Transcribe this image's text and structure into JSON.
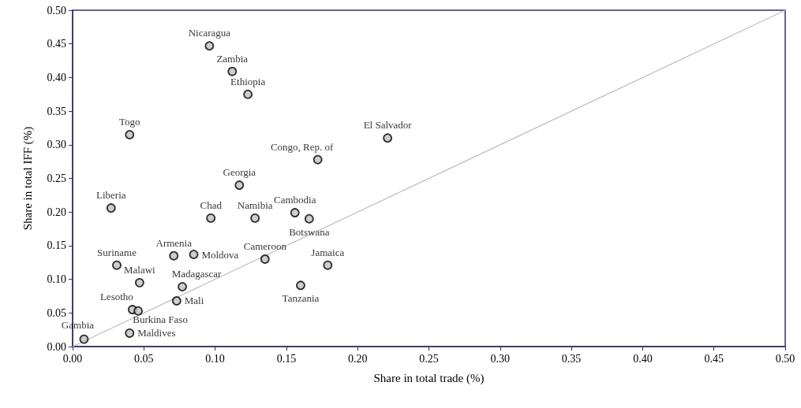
{
  "chart_data": {
    "type": "scatter",
    "xlabel": "Share in total trade (%)",
    "ylabel": "Share in total IFF (%)",
    "series": [
      {
        "color": "#c0c0c0",
        "x": [
          0.096,
          0.112,
          0.123,
          0.04,
          0.221,
          0.172,
          0.117,
          0.027,
          0.097,
          0.128,
          0.156,
          0.166,
          0.071,
          0.085,
          0.135,
          0.179,
          0.031,
          0.047,
          0.077,
          0.16,
          0.073,
          0.042,
          0.046,
          0.008,
          0.04
        ],
        "values": [
          0.447,
          0.409,
          0.375,
          0.315,
          0.31,
          0.278,
          0.24,
          0.206,
          0.191,
          0.191,
          0.199,
          0.19,
          0.135,
          0.137,
          0.13,
          0.121,
          0.121,
          0.095,
          0.089,
          0.091,
          0.068,
          0.055,
          0.053,
          0.011,
          0.02
        ]
      },
      {
        "type": "line",
        "color": "#c0c0c0",
        "x": [
          0,
          0.5
        ],
        "values": [
          0,
          0.5
        ],
        "marker": "none"
      }
    ],
    "annotations": [
      {
        "text": "Nicaragua",
        "x": 0.096,
        "y": 0.447
      },
      {
        "text": "Zambia",
        "x": 0.112,
        "y": 0.409
      },
      {
        "text": "Ethiopia",
        "x": 0.123,
        "y": 0.375
      },
      {
        "text": "Togo",
        "x": 0.04,
        "y": 0.315
      },
      {
        "text": "El Salvador",
        "x": 0.221,
        "y": 0.31
      },
      {
        "text": "Congo, Rep. of",
        "x": 0.172,
        "y": 0.278
      },
      {
        "text": "Georgia",
        "x": 0.117,
        "y": 0.24
      },
      {
        "text": "Liberia",
        "x": 0.027,
        "y": 0.206
      },
      {
        "text": "Chad",
        "x": 0.097,
        "y": 0.191
      },
      {
        "text": "Namibia",
        "x": 0.128,
        "y": 0.191
      },
      {
        "text": "Cambodia",
        "x": 0.156,
        "y": 0.199
      },
      {
        "text": "Botswana",
        "x": 0.166,
        "y": 0.19
      },
      {
        "text": "Armenia",
        "x": 0.071,
        "y": 0.135
      },
      {
        "text": "Moldova",
        "x": 0.085,
        "y": 0.137
      },
      {
        "text": "Cameroon",
        "x": 0.135,
        "y": 0.13
      },
      {
        "text": "Jamaica",
        "x": 0.179,
        "y": 0.121
      },
      {
        "text": "Suriname",
        "x": 0.031,
        "y": 0.121
      },
      {
        "text": "Malawi",
        "x": 0.047,
        "y": 0.095
      },
      {
        "text": "Madagascar",
        "x": 0.077,
        "y": 0.089
      },
      {
        "text": "Tanzania",
        "x": 0.16,
        "y": 0.091
      },
      {
        "text": "Mali",
        "x": 0.073,
        "y": 0.068
      },
      {
        "text": "Lesotho",
        "x": 0.042,
        "y": 0.055
      },
      {
        "text": "Burkina Faso",
        "x": 0.046,
        "y": 0.053
      },
      {
        "text": "Gambia",
        "x": 0.008,
        "y": 0.011
      },
      {
        "text": "Maldives",
        "x": 0.04,
        "y": 0.02
      }
    ],
    "marker": "circle",
    "grid": false,
    "xlim": [
      0,
      0.5
    ],
    "ylim": [
      0,
      0.5
    ],
    "xticks": [
      {
        "value": 0,
        "label": "0.00"
      },
      {
        "value": 0.05,
        "label": "0.05"
      },
      {
        "value": 0.1,
        "label": "0.10"
      },
      {
        "value": 0.15,
        "label": "0.15"
      },
      {
        "value": 0.2,
        "label": "0.20"
      },
      {
        "value": 0.25,
        "label": "0.25"
      },
      {
        "value": 0.3,
        "label": "0.30"
      },
      {
        "value": 0.35,
        "label": "0.35"
      },
      {
        "value": 0.4,
        "label": "0.40"
      },
      {
        "value": 0.45,
        "label": "0.45"
      },
      {
        "value": 0.5,
        "label": "0.50"
      }
    ],
    "yticks": [
      {
        "value": 0,
        "label": "0.00"
      },
      {
        "value": 0.05,
        "label": "0.05"
      },
      {
        "value": 0.1,
        "label": "0.10"
      },
      {
        "value": 0.15,
        "label": "0.15"
      },
      {
        "value": 0.2,
        "label": "0.20"
      },
      {
        "value": 0.25,
        "label": "0.25"
      },
      {
        "value": 0.3,
        "label": "0.30"
      },
      {
        "value": 0.35,
        "label": "0.35"
      },
      {
        "value": 0.4,
        "label": "0.40"
      },
      {
        "value": 0.45,
        "label": "0.45"
      },
      {
        "value": 0.5,
        "label": "0.50"
      }
    ]
  }
}
